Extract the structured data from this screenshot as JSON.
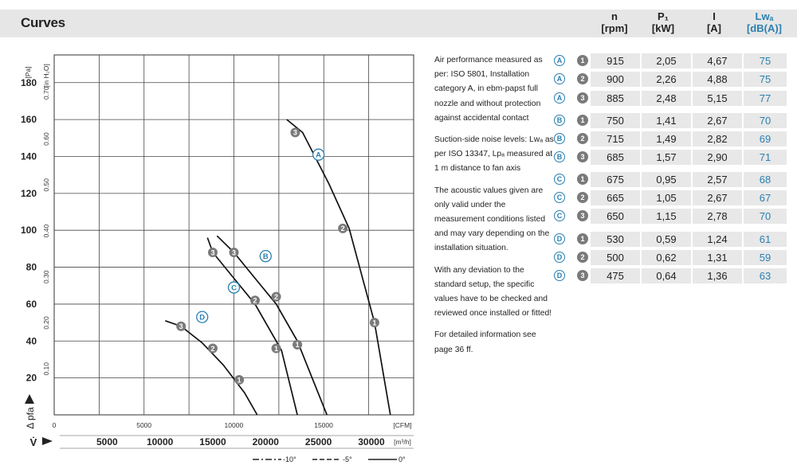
{
  "header": {
    "title": "Curves",
    "columns": [
      {
        "symbol": "n",
        "unit": "[rpm]"
      },
      {
        "symbol": "P₁",
        "unit": "[kW]"
      },
      {
        "symbol": "I",
        "unit": "[A]"
      },
      {
        "symbol": "Lwₐ",
        "unit": "[dB(A)]"
      }
    ]
  },
  "notes": [
    "Air performance measured as per: ISO 5801, Installation category A, in ebm-papst full nozzle and without protection against accidental contact",
    "Suction-side noise levels: Lwₐ as per ISO 13347, Lpₐ measured at 1 m distance to fan axis",
    "The acoustic values given are only valid under the measurement conditions listed and may vary depending on the installation situation.",
    "With any deviation to the standard setup, the specific values have to be checked and reviewed once installed or fitted!",
    "For detailed information see page 36 ff."
  ],
  "table": [
    {
      "curve": "A",
      "point": "1",
      "n": "915",
      "p1": "2,05",
      "i": "4,67",
      "lwa": "75"
    },
    {
      "curve": "A",
      "point": "2",
      "n": "900",
      "p1": "2,26",
      "i": "4,88",
      "lwa": "75"
    },
    {
      "curve": "A",
      "point": "3",
      "n": "885",
      "p1": "2,48",
      "i": "5,15",
      "lwa": "77"
    },
    {
      "curve": "B",
      "point": "1",
      "n": "750",
      "p1": "1,41",
      "i": "2,67",
      "lwa": "70"
    },
    {
      "curve": "B",
      "point": "2",
      "n": "715",
      "p1": "1,49",
      "i": "2,82",
      "lwa": "69"
    },
    {
      "curve": "B",
      "point": "3",
      "n": "685",
      "p1": "1,57",
      "i": "2,90",
      "lwa": "71"
    },
    {
      "curve": "C",
      "point": "1",
      "n": "675",
      "p1": "0,95",
      "i": "2,57",
      "lwa": "68"
    },
    {
      "curve": "C",
      "point": "2",
      "n": "665",
      "p1": "1,05",
      "i": "2,67",
      "lwa": "67"
    },
    {
      "curve": "C",
      "point": "3",
      "n": "650",
      "p1": "1,15",
      "i": "2,78",
      "lwa": "70"
    },
    {
      "curve": "D",
      "point": "1",
      "n": "530",
      "p1": "0,59",
      "i": "1,24",
      "lwa": "61"
    },
    {
      "curve": "D",
      "point": "2",
      "n": "500",
      "p1": "0,62",
      "i": "1,31",
      "lwa": "59"
    },
    {
      "curve": "D",
      "point": "3",
      "n": "475",
      "p1": "0,64",
      "i": "1,36",
      "lwa": "63"
    }
  ],
  "colors": {
    "accent": "#2a7fb0",
    "header_bg": "#e6e6e6",
    "cell_bg": "#e8e8e8",
    "badge_gray": "#7a7a7a"
  },
  "chart_data": {
    "type": "line",
    "x_primary": {
      "label": "[m³/h]",
      "symbol": "V̇",
      "ticks": [
        5000,
        10000,
        15000,
        20000,
        25000,
        30000
      ],
      "range": [
        0,
        34000
      ]
    },
    "x_secondary": {
      "label": "[CFM]",
      "ticks": [
        0,
        5000,
        10000,
        15000
      ]
    },
    "y_primary": {
      "label": "[Pa]",
      "symbol": "Δ p_fa",
      "ticks": [
        20,
        40,
        60,
        80,
        100,
        120,
        140,
        160,
        180
      ],
      "range": [
        0,
        195
      ]
    },
    "y_secondary": {
      "label": "[in H₂O]",
      "ticks": [
        0.1,
        0.2,
        0.3,
        0.4,
        0.5,
        0.6,
        0.7
      ]
    },
    "grid": true,
    "legend": [
      {
        "style": "dash-dot",
        "label": "-10°"
      },
      {
        "style": "dashed",
        "label": "-5°"
      },
      {
        "style": "solid",
        "label": "0°"
      }
    ],
    "series": [
      {
        "name": "A",
        "x": [
          22000,
          23500,
          26000,
          27900,
          30300,
          31800
        ],
        "y": [
          160,
          153,
          125,
          101,
          50,
          0
        ],
        "points": [
          {
            "label": "3",
            "x": 22800,
            "y": 153
          },
          {
            "label": "2",
            "x": 27300,
            "y": 101
          },
          {
            "label": "1",
            "x": 30300,
            "y": 50
          }
        ],
        "label_at": {
          "x": 25000,
          "y": 141
        }
      },
      {
        "name": "B",
        "x": [
          15400,
          17000,
          19000,
          21000,
          23000,
          25800
        ],
        "y": [
          97,
          88,
          74,
          60,
          40,
          0
        ],
        "points": [
          {
            "label": "3",
            "x": 17000,
            "y": 88
          },
          {
            "label": "2",
            "x": 21000,
            "y": 64
          },
          {
            "label": "1",
            "x": 23000,
            "y": 38
          }
        ],
        "label_at": {
          "x": 20000,
          "y": 86
        }
      },
      {
        "name": "C",
        "x": [
          14500,
          15000,
          17000,
          19000,
          21500,
          23000
        ],
        "y": [
          96,
          88,
          74,
          60,
          35,
          0
        ],
        "points": [
          {
            "label": "3",
            "x": 15000,
            "y": 88
          },
          {
            "label": "2",
            "x": 19000,
            "y": 62
          },
          {
            "label": "1",
            "x": 21000,
            "y": 36
          }
        ],
        "label_at": {
          "x": 17000,
          "y": 69
        }
      },
      {
        "name": "D",
        "x": [
          10500,
          12000,
          14000,
          16000,
          18000,
          19200
        ],
        "y": [
          51,
          48,
          39,
          27,
          12,
          0
        ],
        "points": [
          {
            "label": "3",
            "x": 12000,
            "y": 48
          },
          {
            "label": "2",
            "x": 15000,
            "y": 36
          },
          {
            "label": "1",
            "x": 17500,
            "y": 19
          }
        ],
        "label_at": {
          "x": 14000,
          "y": 53
        }
      }
    ]
  }
}
